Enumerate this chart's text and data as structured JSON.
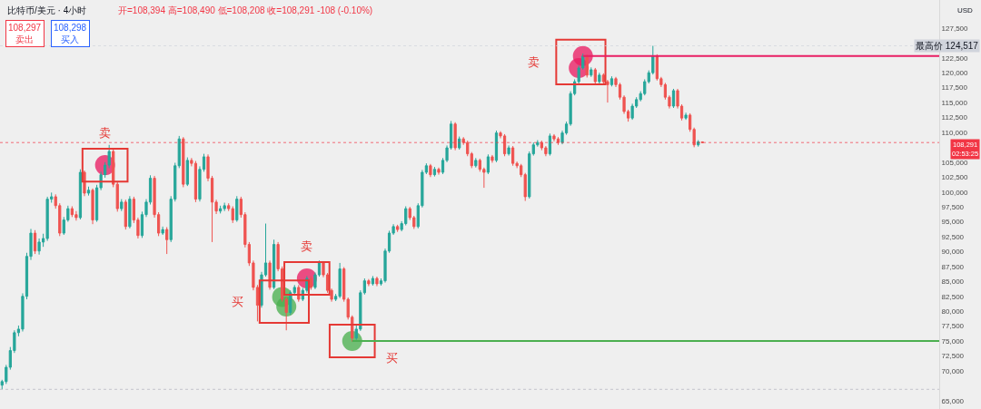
{
  "chart_data": {
    "type": "candlestick",
    "title": "比特币/美元 · 4小时",
    "subtitle": "开=108,394 高=108,490 低=108,208 收=108,291 -108 (-0.10%)",
    "ylabel": "USD",
    "annotations": [
      "108,297\n卖出",
      "108,298\n买入",
      "卖",
      "买",
      "卖",
      "买",
      "卖"
    ],
    "categories": [
      null,
      null,
      null,
      null,
      null,
      null,
      null,
      null,
      null,
      null,
      null,
      null,
      null,
      null,
      null,
      null,
      null,
      null,
      null,
      null,
      null,
      null,
      null,
      null,
      null,
      null,
      null,
      null,
      null,
      null,
      null,
      null,
      null,
      null,
      null,
      null,
      null,
      null,
      null,
      null,
      null,
      null,
      null,
      null,
      null,
      null,
      null,
      null,
      null,
      null,
      null,
      null,
      null,
      null,
      null,
      null,
      null,
      null,
      null,
      null,
      null,
      null,
      null,
      null,
      null,
      null,
      null,
      null,
      null,
      null,
      null,
      null,
      null,
      null,
      null,
      null,
      null,
      null,
      null,
      null,
      null,
      null,
      null,
      null,
      null,
      null,
      null,
      null,
      null,
      null,
      null,
      null,
      null,
      null,
      null,
      null,
      null,
      null,
      null,
      null,
      null,
      null,
      null,
      null,
      null,
      null,
      null,
      null,
      null,
      null,
      null,
      null,
      null,
      null,
      null,
      null,
      null,
      null,
      null,
      null,
      null,
      null,
      null,
      null,
      null,
      null,
      null,
      null,
      null,
      null,
      null,
      null,
      null,
      null,
      null,
      null,
      null,
      null,
      null,
      null,
      null,
      null,
      null,
      null,
      null,
      null,
      null,
      null,
      null,
      null,
      null,
      null,
      null,
      null,
      null,
      null,
      null,
      null,
      null,
      null,
      null,
      null,
      null,
      null,
      null,
      null,
      null,
      null,
      null,
      null,
      null,
      null,
      null,
      null,
      null,
      null,
      null,
      null,
      null,
      null,
      null,
      null,
      null,
      null,
      null,
      null,
      null,
      null,
      null,
      null,
      null,
      null,
      null,
      null,
      null,
      null,
      null,
      null,
      null,
      null,
      null,
      null,
      null,
      null,
      null,
      null,
      null,
      null,
      null,
      null,
      null,
      null,
      null,
      null,
      null,
      null,
      null,
      null,
      null,
      null,
      null,
      null,
      null,
      null,
      null,
      null,
      null,
      null
    ],
    "ohlc": [
      [
        67600,
        68500,
        66900,
        68200
      ],
      [
        68200,
        71000,
        67800,
        70600
      ],
      [
        70600,
        74000,
        70200,
        73400
      ],
      [
        73400,
        76800,
        73000,
        76400
      ],
      [
        76400,
        77600,
        75800,
        77000
      ],
      [
        77000,
        83000,
        76600,
        82500
      ],
      [
        82500,
        89800,
        82000,
        89200
      ],
      [
        89200,
        93800,
        88600,
        93100
      ],
      [
        93100,
        93600,
        89600,
        90100
      ],
      [
        90100,
        92200,
        89500,
        91600
      ],
      [
        91600,
        93000,
        90800,
        92200
      ],
      [
        92200,
        99200,
        91800,
        98800
      ],
      [
        98800,
        99900,
        98200,
        99200
      ],
      [
        99200,
        99600,
        97200,
        97700
      ],
      [
        97700,
        98100,
        92600,
        93100
      ],
      [
        93100,
        95800,
        92800,
        95300
      ],
      [
        95300,
        97700,
        95000,
        97200
      ],
      [
        97200,
        97600,
        95800,
        96200
      ],
      [
        96200,
        96800,
        95200,
        95700
      ],
      [
        95700,
        103800,
        95400,
        103300
      ],
      [
        103300,
        103600,
        99300,
        99800
      ],
      [
        99800,
        100900,
        99400,
        100300
      ],
      [
        100300,
        100600,
        94600,
        95300
      ],
      [
        95300,
        101200,
        95000,
        100700
      ],
      [
        100700,
        103400,
        100300,
        102900
      ],
      [
        102900,
        105000,
        102400,
        104500
      ],
      [
        104500,
        107900,
        104000,
        106800
      ],
      [
        106800,
        107200,
        100800,
        101300
      ],
      [
        101300,
        101700,
        96700,
        97200
      ],
      [
        97200,
        98800,
        96800,
        98300
      ],
      [
        98300,
        98700,
        93700,
        94200
      ],
      [
        94200,
        99300,
        93900,
        98800
      ],
      [
        98800,
        99200,
        94800,
        95300
      ],
      [
        95300,
        95700,
        92200,
        92700
      ],
      [
        92700,
        96700,
        92300,
        96200
      ],
      [
        96200,
        98800,
        95800,
        98300
      ],
      [
        98300,
        102800,
        97900,
        102300
      ],
      [
        102300,
        102700,
        95700,
        96200
      ],
      [
        96200,
        96600,
        92600,
        93100
      ],
      [
        93100,
        94200,
        92800,
        93700
      ],
      [
        93700,
        94100,
        89600,
        92000
      ],
      [
        92000,
        99300,
        91600,
        98800
      ],
      [
        98800,
        104900,
        98400,
        104400
      ],
      [
        104400,
        109400,
        104000,
        108900
      ],
      [
        108900,
        109200,
        100800,
        101300
      ],
      [
        101300,
        105800,
        101000,
        105300
      ],
      [
        105300,
        105700,
        104300,
        104800
      ],
      [
        104800,
        105200,
        98300,
        98800
      ],
      [
        98800,
        104300,
        98400,
        103800
      ],
      [
        103800,
        106400,
        103400,
        105900
      ],
      [
        105900,
        106300,
        101800,
        102300
      ],
      [
        102300,
        102700,
        91600,
        98300
      ],
      [
        98300,
        98700,
        96300,
        96800
      ],
      [
        96800,
        97700,
        96400,
        97200
      ],
      [
        97200,
        98200,
        96800,
        97700
      ],
      [
        97700,
        98100,
        96800,
        97200
      ],
      [
        97200,
        97600,
        94800,
        95300
      ],
      [
        95300,
        99300,
        95000,
        98800
      ],
      [
        98800,
        99200,
        95700,
        96200
      ],
      [
        96200,
        96600,
        90700,
        91200
      ],
      [
        91200,
        91600,
        87600,
        88100
      ],
      [
        88100,
        88500,
        83500,
        84000
      ],
      [
        84000,
        84400,
        78300,
        81000
      ],
      [
        81000,
        86600,
        80600,
        86100
      ],
      [
        86100,
        94700,
        85800,
        88100
      ],
      [
        88100,
        88500,
        83600,
        84000
      ],
      [
        84000,
        92000,
        83700,
        91200
      ],
      [
        91200,
        91600,
        86700,
        87100
      ],
      [
        87100,
        87500,
        81600,
        82000
      ],
      [
        82000,
        82400,
        76800,
        79800
      ],
      [
        79800,
        83500,
        79400,
        83100
      ],
      [
        83100,
        84400,
        82700,
        84000
      ],
      [
        84000,
        84400,
        81600,
        82000
      ],
      [
        82000,
        83900,
        81700,
        83500
      ],
      [
        83500,
        85900,
        83100,
        85500
      ],
      [
        85500,
        85900,
        83600,
        84000
      ],
      [
        84000,
        86500,
        83700,
        86100
      ],
      [
        86100,
        88500,
        85800,
        88100
      ],
      [
        88100,
        88400,
        85700,
        86100
      ],
      [
        86100,
        86400,
        83100,
        83500
      ],
      [
        83500,
        83800,
        81600,
        82000
      ],
      [
        82000,
        82900,
        81700,
        82500
      ],
      [
        82500,
        88100,
        82200,
        87100
      ],
      [
        87100,
        87400,
        81600,
        82000
      ],
      [
        82000,
        82300,
        78600,
        79000
      ],
      [
        79000,
        79300,
        74900,
        75500
      ],
      [
        75500,
        77800,
        75200,
        77000
      ],
      [
        77000,
        83500,
        76700,
        83100
      ],
      [
        83100,
        85500,
        82800,
        85100
      ],
      [
        85100,
        85400,
        84200,
        84600
      ],
      [
        84600,
        85900,
        84300,
        85500
      ],
      [
        85500,
        85800,
        84200,
        84600
      ],
      [
        84600,
        85500,
        84300,
        85100
      ],
      [
        85100,
        90500,
        84800,
        90100
      ],
      [
        90100,
        93500,
        89800,
        93100
      ],
      [
        93100,
        94600,
        92800,
        94200
      ],
      [
        94200,
        94500,
        93300,
        93700
      ],
      [
        93700,
        95100,
        93400,
        94700
      ],
      [
        94700,
        97600,
        94400,
        97200
      ],
      [
        97200,
        97500,
        95300,
        95700
      ],
      [
        95700,
        96000,
        93800,
        94200
      ],
      [
        94200,
        98100,
        93900,
        97700
      ],
      [
        97700,
        103700,
        97400,
        103300
      ],
      [
        103300,
        104800,
        103000,
        104400
      ],
      [
        104400,
        104700,
        102500,
        102900
      ],
      [
        102900,
        104200,
        102600,
        103800
      ],
      [
        103800,
        104100,
        102900,
        103300
      ],
      [
        103300,
        105700,
        103000,
        105300
      ],
      [
        105300,
        107800,
        105000,
        107400
      ],
      [
        107400,
        111900,
        107100,
        111400
      ],
      [
        111400,
        111700,
        107000,
        107400
      ],
      [
        107400,
        109300,
        107100,
        108900
      ],
      [
        108900,
        109200,
        107900,
        108300
      ],
      [
        108300,
        108600,
        106000,
        106400
      ],
      [
        106400,
        106700,
        104000,
        104400
      ],
      [
        104400,
        105700,
        104100,
        105300
      ],
      [
        105300,
        105600,
        103400,
        103800
      ],
      [
        103800,
        104100,
        100700,
        103300
      ],
      [
        103300,
        106300,
        103000,
        105900
      ],
      [
        105900,
        106200,
        104900,
        105300
      ],
      [
        105300,
        110300,
        105000,
        109900
      ],
      [
        109900,
        110200,
        109000,
        109400
      ],
      [
        109400,
        109700,
        106000,
        106400
      ],
      [
        106400,
        107800,
        106100,
        107400
      ],
      [
        107400,
        107700,
        104400,
        104800
      ],
      [
        104800,
        105100,
        104000,
        104400
      ],
      [
        104400,
        104700,
        102500,
        102900
      ],
      [
        102900,
        103200,
        98500,
        99200
      ],
      [
        99200,
        106800,
        98900,
        106400
      ],
      [
        106400,
        108300,
        106100,
        107900
      ],
      [
        107900,
        108700,
        107600,
        108300
      ],
      [
        108300,
        108600,
        107000,
        107400
      ],
      [
        107400,
        107700,
        106000,
        106400
      ],
      [
        106400,
        109800,
        106100,
        109400
      ],
      [
        109400,
        109700,
        108500,
        108900
      ],
      [
        108900,
        109200,
        107900,
        108300
      ],
      [
        108300,
        110300,
        108000,
        109900
      ],
      [
        109900,
        111800,
        109600,
        111400
      ],
      [
        111400,
        116900,
        111100,
        116500
      ],
      [
        116500,
        118900,
        116200,
        118500
      ],
      [
        118500,
        121200,
        118200,
        120800
      ],
      [
        120800,
        123200,
        120500,
        122800
      ],
      [
        122800,
        123100,
        119200,
        119600
      ],
      [
        119600,
        120900,
        119300,
        120500
      ],
      [
        120500,
        120800,
        118100,
        118500
      ],
      [
        118500,
        120000,
        118200,
        119600
      ],
      [
        119600,
        119900,
        118100,
        118500
      ],
      [
        118500,
        118800,
        115000,
        118000
      ],
      [
        118000,
        119400,
        117700,
        119000
      ],
      [
        119000,
        119300,
        117600,
        118000
      ],
      [
        118000,
        118300,
        115500,
        115900
      ],
      [
        115900,
        116200,
        113100,
        113500
      ],
      [
        113500,
        113800,
        111800,
        112400
      ],
      [
        112400,
        114800,
        112100,
        114400
      ],
      [
        114400,
        115900,
        114100,
        115500
      ],
      [
        115500,
        116900,
        115200,
        116500
      ],
      [
        116500,
        118900,
        116200,
        118500
      ],
      [
        118500,
        120400,
        118200,
        120000
      ],
      [
        120000,
        124517,
        119700,
        122800
      ],
      [
        122800,
        123100,
        118700,
        119000
      ],
      [
        119000,
        119300,
        117600,
        118000
      ],
      [
        118000,
        118300,
        115500,
        115900
      ],
      [
        115900,
        116200,
        114000,
        114400
      ],
      [
        114400,
        117300,
        114100,
        117000
      ],
      [
        117000,
        117300,
        114000,
        114400
      ],
      [
        114400,
        114700,
        112000,
        112400
      ],
      [
        112400,
        113300,
        112100,
        112900
      ],
      [
        112900,
        113200,
        110100,
        110500
      ],
      [
        110500,
        110800,
        107500,
        107900
      ],
      [
        107900,
        108700,
        107600,
        108400
      ],
      [
        108394,
        108490,
        108208,
        108291
      ],
      null,
      null,
      null,
      null,
      null,
      null,
      null,
      null,
      null,
      null,
      null,
      null,
      null,
      null,
      null,
      null,
      null,
      null,
      null,
      null,
      null,
      null,
      null,
      null,
      null,
      null,
      null,
      null,
      null,
      null,
      null,
      null,
      null,
      null,
      null,
      null,
      null,
      null,
      null,
      null,
      null,
      null,
      null,
      null,
      null,
      null,
      null,
      null,
      null,
      null,
      null,
      null,
      null,
      null,
      null,
      null,
      null
    ],
    "series": [
      {
        "type": "scatter",
        "color": "#e91e63",
        "values": [
          null,
          null,
          null,
          null,
          null,
          null,
          null,
          null,
          null,
          null,
          null,
          null,
          null,
          null,
          null,
          null,
          null,
          null,
          null,
          null,
          null,
          null,
          null,
          null,
          null,
          104500,
          null,
          null,
          null,
          null,
          null,
          null,
          null,
          null,
          null,
          null,
          null,
          null,
          null,
          null,
          null,
          null,
          null,
          null,
          null,
          null,
          null,
          null,
          null,
          null,
          null,
          null,
          null,
          null,
          null,
          null,
          null,
          null,
          null,
          null,
          null,
          null,
          null,
          null,
          null,
          null,
          null,
          null,
          null,
          null,
          null,
          null,
          null,
          null,
          85500,
          null,
          null,
          null,
          null,
          null,
          null,
          null,
          null,
          null,
          null,
          null,
          null,
          null,
          null,
          null,
          null,
          null,
          null,
          null,
          null,
          null,
          null,
          null,
          null,
          null,
          null,
          null,
          null,
          null,
          null,
          null,
          null,
          null,
          null,
          null,
          null,
          null,
          null,
          null,
          null,
          null,
          null,
          null,
          null,
          null,
          null,
          null,
          null,
          null,
          null,
          null,
          null,
          null,
          null,
          null,
          null,
          null,
          null,
          null,
          null,
          null,
          null,
          null,
          null,
          null,
          120800,
          122800,
          null,
          null,
          null,
          null,
          null,
          null,
          null,
          null,
          null,
          null,
          null,
          null,
          null,
          null,
          null,
          null,
          null,
          null,
          null,
          null,
          null,
          null,
          null,
          null,
          null,
          null,
          null,
          null,
          null,
          null,
          null,
          null,
          null,
          null,
          null,
          null,
          null,
          null,
          null,
          null,
          null,
          null,
          null,
          null,
          null,
          null,
          null,
          null,
          null,
          null,
          null,
          null,
          null,
          null,
          null,
          null,
          null,
          null,
          null,
          null,
          null,
          null,
          null,
          null,
          null,
          null,
          null,
          null,
          null,
          null,
          null,
          null,
          null,
          null,
          null,
          null,
          null,
          null,
          null,
          null,
          null,
          null,
          null,
          null,
          null,
          null
        ]
      },
      {
        "type": "scatter",
        "color": "#4caf50",
        "values": [
          null,
          null,
          null,
          null,
          null,
          null,
          null,
          null,
          null,
          null,
          null,
          null,
          null,
          null,
          null,
          null,
          null,
          null,
          null,
          null,
          null,
          null,
          null,
          null,
          null,
          null,
          null,
          null,
          null,
          null,
          null,
          null,
          null,
          null,
          null,
          null,
          null,
          null,
          null,
          null,
          null,
          null,
          null,
          null,
          null,
          null,
          null,
          null,
          null,
          null,
          null,
          null,
          null,
          null,
          null,
          null,
          null,
          null,
          null,
          null,
          null,
          null,
          null,
          null,
          null,
          null,
          null,
          null,
          82400,
          80800,
          null,
          null,
          null,
          null,
          null,
          null,
          null,
          null,
          null,
          null,
          null,
          null,
          null,
          null,
          null,
          75000,
          null,
          null,
          null,
          null,
          null,
          null,
          null,
          null,
          null,
          null,
          null,
          null,
          null,
          null,
          null,
          null,
          null,
          null,
          null,
          null,
          null,
          null,
          null,
          null,
          null,
          null,
          null,
          null,
          null,
          null,
          null,
          null,
          null,
          null,
          null,
          null,
          null,
          null,
          null,
          null,
          null,
          null,
          null,
          null,
          null,
          null,
          null,
          null,
          null,
          null,
          null,
          null,
          null,
          null,
          null,
          null,
          null,
          null,
          null,
          null,
          null,
          null,
          null,
          null,
          null,
          null,
          null,
          null,
          null,
          null,
          null,
          null,
          null,
          null,
          null,
          null,
          null,
          null,
          null,
          null,
          null,
          null,
          null,
          null,
          null,
          null,
          null,
          null,
          null,
          null,
          null,
          null,
          null,
          null,
          null,
          null,
          null,
          null,
          null,
          null,
          null,
          null,
          null,
          null,
          null,
          null,
          null,
          null,
          null,
          null,
          null,
          null,
          null,
          null,
          null,
          null,
          null,
          null,
          null,
          null,
          null,
          null,
          null,
          null,
          null,
          null,
          null,
          null,
          null,
          null,
          null,
          null,
          null,
          null,
          null,
          null,
          null,
          null,
          null,
          null,
          null,
          null
        ]
      }
    ],
    "ylim": [
      63600,
      132200
    ],
    "yticks": [
      {
        "value": 65000,
        "label": "65,000"
      },
      {
        "value": 70000,
        "label": "70,000"
      },
      {
        "value": 72500,
        "label": "72,500"
      },
      {
        "value": 75000,
        "label": "75,000"
      },
      {
        "value": 77500,
        "label": "77,500"
      },
      {
        "value": 80000,
        "label": "80,000"
      },
      {
        "value": 82500,
        "label": "82,500"
      },
      {
        "value": 85000,
        "label": "85,000"
      },
      {
        "value": 87500,
        "label": "87,500"
      },
      {
        "value": 90000,
        "label": "90,000"
      },
      {
        "value": 92500,
        "label": "92,500"
      },
      {
        "value": 95000,
        "label": "95,000"
      },
      {
        "value": 97500,
        "label": "97,500"
      },
      {
        "value": 100000,
        "label": "100,000"
      },
      {
        "value": 102500,
        "label": "102,500"
      },
      {
        "value": 105000,
        "label": "105,000"
      },
      {
        "value": 110000,
        "label": "110,000"
      },
      {
        "value": 112500,
        "label": "112,500"
      },
      {
        "value": 115000,
        "label": "115,000"
      },
      {
        "value": 117500,
        "label": "117,500"
      },
      {
        "value": 120000,
        "label": "120,000"
      },
      {
        "value": 122500,
        "label": "122,500"
      },
      {
        "value": 127500,
        "label": "127,500"
      }
    ],
    "tick_labels": "y",
    "marker": "circle",
    "ref_lines": [
      {
        "axis": "y",
        "value": 122800,
        "color": "#e91e63",
        "line_style": "solid"
      },
      {
        "axis": "y",
        "value": 75000,
        "color": "#4caf50",
        "line_style": "solid"
      },
      {
        "axis": "y",
        "value": 124517,
        "label": "最高价 124,517",
        "color": "#d1d4dc",
        "line_style": "dotted"
      },
      {
        "axis": "y",
        "value": 108291,
        "label": "108,291\n02:53:25",
        "color": "#f23645",
        "line_style": "dotted"
      },
      {
        "axis": "y",
        "value": 66900,
        "color": "#b2b5be",
        "line_style": "dotted"
      }
    ]
  }
}
